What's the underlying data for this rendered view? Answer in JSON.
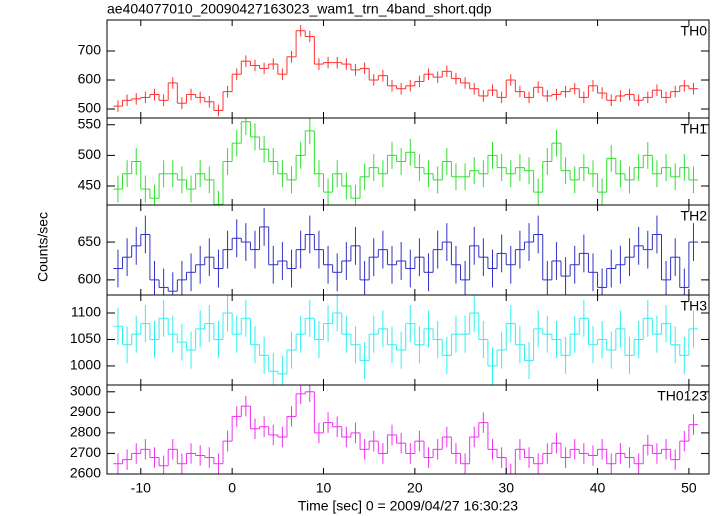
{
  "chart_data": {
    "type": "step",
    "title": "ae404077010_20090427163023_wam1_trn_4band_short.qdp",
    "xlabel": "Time [sec] 0 = 2009/04/27 16:30:23",
    "ylabel": "Counts/sec",
    "xlim": [
      -13.7,
      52.2
    ],
    "xticks": [
      -10,
      0,
      10,
      20,
      30,
      40,
      50
    ],
    "x": [
      -12.5,
      -11.5,
      -10.5,
      -9.5,
      -8.5,
      -7.5,
      -6.5,
      -5.5,
      -4.5,
      -3.5,
      -2.5,
      -1.5,
      -0.5,
      0.5,
      1.5,
      2.5,
      3.5,
      4.5,
      5.5,
      6.5,
      7.5,
      8.5,
      9.5,
      10.5,
      11.5,
      12.5,
      13.5,
      14.5,
      15.5,
      16.5,
      17.5,
      18.5,
      19.5,
      20.5,
      21.5,
      22.5,
      23.5,
      24.5,
      25.5,
      26.5,
      27.5,
      28.5,
      29.5,
      30.5,
      31.5,
      32.5,
      33.5,
      34.5,
      35.5,
      36.5,
      37.5,
      38.5,
      39.5,
      40.5,
      41.5,
      42.5,
      43.5,
      44.5,
      45.5,
      46.5,
      47.5,
      48.5,
      49.5,
      50.5
    ],
    "panels": [
      {
        "name": "TH0",
        "color": "#ff3030",
        "ylim": [
          469,
          807
        ],
        "yticks": [
          500,
          600,
          700
        ],
        "error": 20,
        "values": [
          510,
          530,
          535,
          540,
          550,
          530,
          590,
          520,
          550,
          540,
          525,
          495,
          560,
          620,
          665,
          650,
          640,
          655,
          620,
          680,
          770,
          750,
          655,
          660,
          660,
          655,
          635,
          640,
          600,
          615,
          580,
          570,
          580,
          595,
          620,
          610,
          630,
          605,
          590,
          570,
          545,
          565,
          540,
          600,
          560,
          540,
          575,
          545,
          550,
          560,
          570,
          540,
          580,
          555,
          530,
          545,
          550,
          530,
          540,
          565,
          540,
          560,
          580,
          570
        ]
      },
      {
        "name": "TH1",
        "color": "#30e030",
        "ylim": [
          419,
          561
        ],
        "yticks": [
          450,
          500,
          550
        ],
        "error": 22,
        "values": [
          445,
          470,
          490,
          445,
          430,
          470,
          470,
          460,
          445,
          470,
          460,
          420,
          490,
          520,
          555,
          530,
          510,
          490,
          470,
          460,
          500,
          540,
          470,
          440,
          470,
          450,
          430,
          465,
          480,
          470,
          500,
          490,
          505,
          480,
          470,
          460,
          490,
          465,
          465,
          475,
          470,
          500,
          480,
          470,
          480,
          475,
          440,
          490,
          520,
          475,
          460,
          480,
          470,
          440,
          495,
          470,
          460,
          480,
          500,
          470,
          480,
          465,
          480,
          460
        ]
      },
      {
        "name": "TH2",
        "color": "#3030c8",
        "ylim": [
          580,
          699
        ],
        "yticks": [
          600,
          650
        ],
        "error": 25,
        "values": [
          615,
          630,
          645,
          660,
          600,
          590,
          585,
          600,
          610,
          620,
          630,
          615,
          640,
          655,
          650,
          640,
          670,
          620,
          625,
          615,
          640,
          660,
          640,
          620,
          610,
          625,
          645,
          600,
          630,
          640,
          620,
          625,
          615,
          630,
          610,
          640,
          650,
          620,
          600,
          645,
          630,
          615,
          635,
          620,
          640,
          650,
          660,
          600,
          625,
          605,
          620,
          635,
          610,
          590,
          615,
          620,
          630,
          645,
          640,
          660,
          600,
          630,
          590,
          650
        ]
      },
      {
        "name": "TH3",
        "color": "#30f0f0",
        "ylim": [
          964,
          1134
        ],
        "yticks": [
          1000,
          1050,
          1100
        ],
        "error": 35,
        "values": [
          1075,
          1040,
          1060,
          1080,
          1050,
          1090,
          1060,
          1045,
          1030,
          1070,
          1080,
          1050,
          1100,
          1060,
          1090,
          1040,
          1020,
          990,
          985,
          1030,
          1060,
          1090,
          1050,
          1080,
          1100,
          1060,
          1040,
          1010,
          1060,
          1070,
          1040,
          1030,
          1080,
          1040,
          1070,
          1050,
          1020,
          1060,
          1060,
          1100,
          1050,
          1000,
          1030,
          1080,
          1040,
          1010,
          1070,
          1060,
          1050,
          1020,
          1060,
          1090,
          1040,
          1050,
          1030,
          1070,
          1020,
          1050,
          1090,
          1060,
          1080,
          1040,
          1020,
          1070
        ]
      },
      {
        "name": "TH0123",
        "color": "#f030f0",
        "ylim": [
          2600,
          3033
        ],
        "yticks": [
          2600,
          2700,
          2800,
          2900,
          3000
        ],
        "error": 50,
        "values": [
          2650,
          2670,
          2700,
          2720,
          2680,
          2640,
          2720,
          2650,
          2700,
          2690,
          2680,
          2650,
          2760,
          2880,
          2930,
          2820,
          2830,
          2790,
          2780,
          2880,
          2990,
          3000,
          2800,
          2850,
          2830,
          2780,
          2800,
          2720,
          2760,
          2700,
          2790,
          2750,
          2700,
          2760,
          2680,
          2720,
          2780,
          2700,
          2650,
          2780,
          2850,
          2720,
          2680,
          2600,
          2720,
          2680,
          2650,
          2700,
          2750,
          2680,
          2720,
          2700,
          2690,
          2720,
          2650,
          2700,
          2680,
          2650,
          2740,
          2700,
          2720,
          2670,
          2760,
          2840
        ]
      }
    ]
  }
}
